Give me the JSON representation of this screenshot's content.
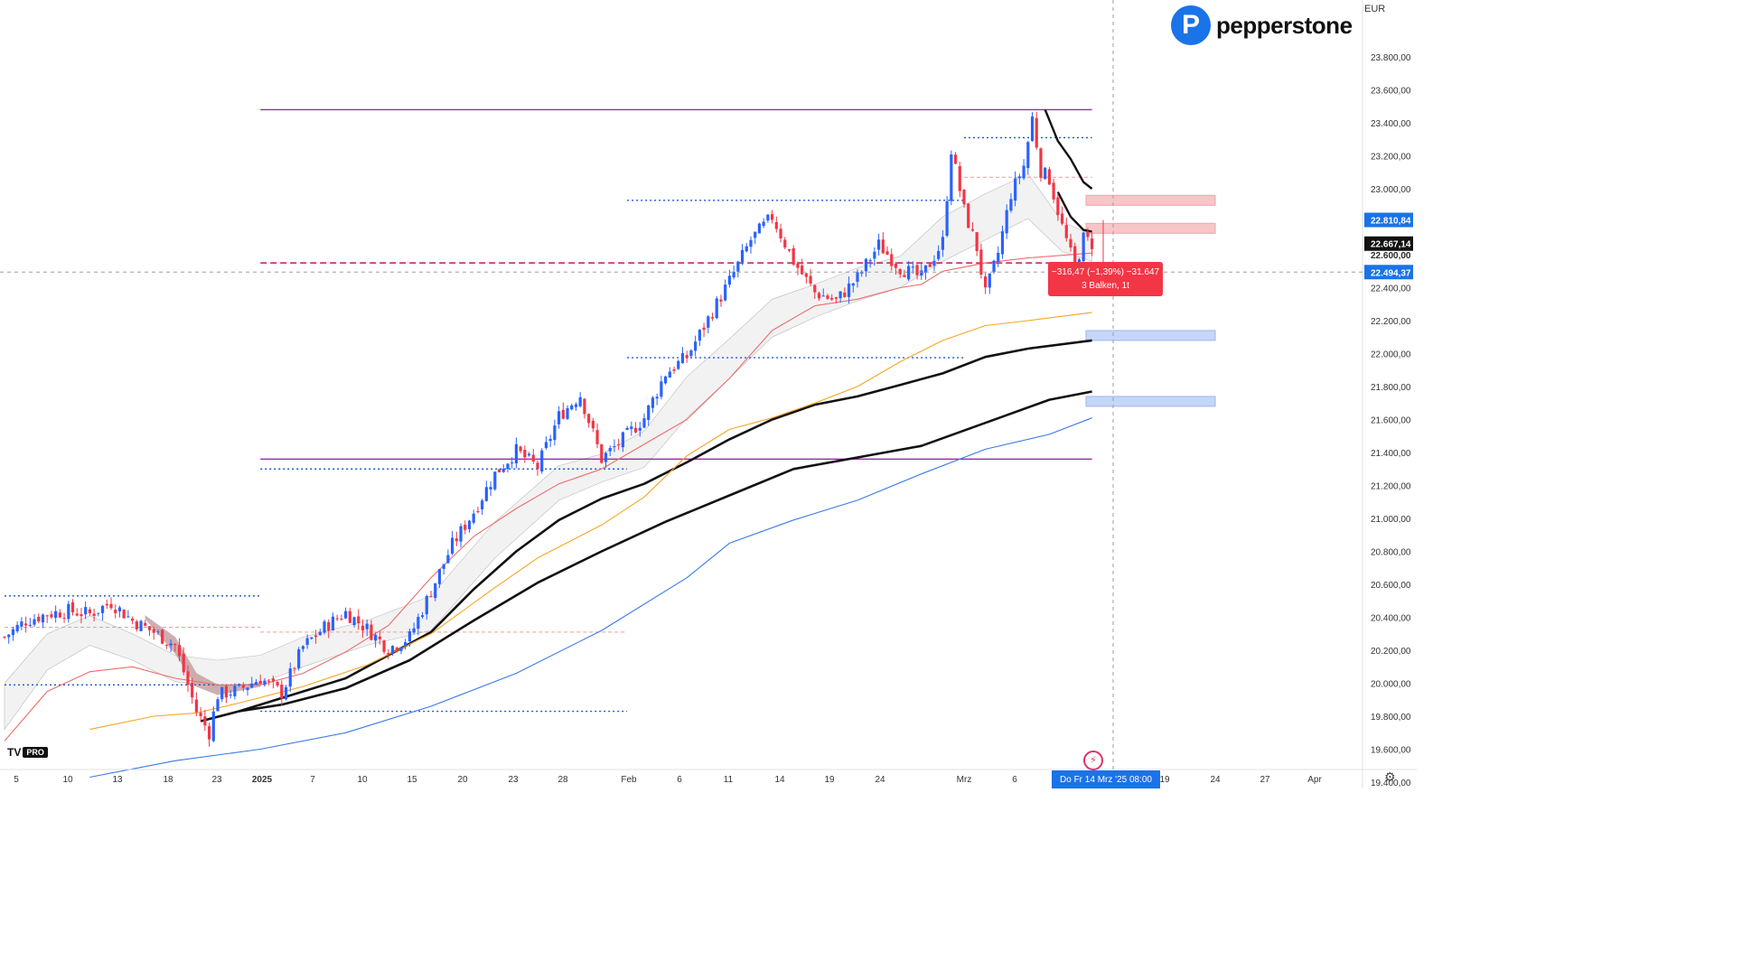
{
  "header": {
    "currency": "EUR",
    "brand": "pepperstone",
    "brand_mark": "P"
  },
  "tv_logo": {
    "text": "TV",
    "badge": "PRO"
  },
  "measure": {
    "line1": "−316,47 (−1,39%) −31.647",
    "line2": "3 Balken, 1t"
  },
  "date_badge": {
    "text": "Do  Fr 14 Mrz '25   08:00"
  },
  "chart_data": {
    "type": "candlestick",
    "title": "",
    "y_axis": {
      "range": [
        19350,
        23900
      ],
      "ticks": [
        "19.400,00",
        "19.600,00",
        "19.800,00",
        "20.000,00",
        "20.200,00",
        "20.400,00",
        "20.600,00",
        "20.800,00",
        "21.000,00",
        "21.200,00",
        "21.400,00",
        "21.600,00",
        "21.800,00",
        "22.000,00",
        "22.200,00",
        "22.400,00",
        "22.600,00",
        "22.800,00",
        "23.000,00",
        "23.200,00",
        "23.400,00",
        "23.600,00",
        "23.800,00"
      ],
      "tick_values": [
        19400,
        19600,
        19800,
        20000,
        20200,
        20400,
        20600,
        20800,
        21000,
        21200,
        21400,
        21600,
        21800,
        22000,
        22200,
        22400,
        22600,
        22800,
        23000,
        23200,
        23400,
        23600,
        23800
      ]
    },
    "x_axis": {
      "labels": [
        "5",
        "10",
        "13",
        "18",
        "23",
        "2025",
        "7",
        "10",
        "15",
        "20",
        "23",
        "28",
        "Feb",
        "6",
        "11",
        "14",
        "19",
        "24",
        "Mrz",
        "6",
        "19",
        "24",
        "27",
        "Apr"
      ],
      "bold": [
        "2025"
      ]
    },
    "price_labels": [
      {
        "text": "22.810,84",
        "value": 22810.84,
        "color": "#1a73e8"
      },
      {
        "text": "22.667,14",
        "value": 22667.14,
        "color": "#111111"
      },
      {
        "text": "22.600,00",
        "value": 22600,
        "color": "none"
      },
      {
        "text": "22.494,37",
        "value": 22494.37,
        "color": "#1a73e8"
      }
    ],
    "horizontal_levels": [
      {
        "value": 23480,
        "style": "solid",
        "color": "#9c27b0",
        "from_bar": 60,
        "to_bar": 255
      },
      {
        "value": 21360,
        "style": "solid",
        "color": "#9c27b0",
        "from_bar": 60,
        "to_bar": 255
      },
      {
        "value": 22550,
        "style": "dashed",
        "color": "#c2185b",
        "from_bar": 60,
        "to_bar": 255
      },
      {
        "value": 23310,
        "style": "dotted",
        "color": "#1a55d0",
        "from_bar": 225,
        "to_bar": 255
      },
      {
        "value": 22930,
        "style": "dotted",
        "color": "#1a55d0",
        "from_bar": 146,
        "to_bar": 225
      },
      {
        "value": 21975,
        "style": "dotted",
        "color": "#1a55d0",
        "from_bar": 146,
        "to_bar": 225
      },
      {
        "value": 21300,
        "style": "dotted",
        "color": "#1a55d0",
        "from_bar": 60,
        "to_bar": 146
      },
      {
        "value": 20530,
        "style": "dotted",
        "color": "#1a55d0",
        "from_bar": 0,
        "to_bar": 60
      },
      {
        "value": 19990,
        "style": "dotted",
        "color": "#1a55d0",
        "from_bar": 0,
        "to_bar": 60
      },
      {
        "value": 19830,
        "style": "dotted",
        "color": "#1a55d0",
        "from_bar": 60,
        "to_bar": 146
      }
    ],
    "zones": [
      {
        "low": 22900,
        "high": 22960,
        "color": "#f8c6c9"
      },
      {
        "low": 22730,
        "high": 22790,
        "color": "#f8c6c9"
      },
      {
        "low": 22080,
        "high": 22140,
        "color": "#c6d6f8"
      },
      {
        "low": 21680,
        "high": 21740,
        "color": "#c6d6f8"
      }
    ],
    "anchors": [
      [
        0,
        20280
      ],
      [
        5,
        20380
      ],
      [
        10,
        20420
      ],
      [
        15,
        20440
      ],
      [
        20,
        20420
      ],
      [
        25,
        20490
      ],
      [
        30,
        20380
      ],
      [
        35,
        20310
      ],
      [
        40,
        20230
      ],
      [
        45,
        19830
      ],
      [
        48,
        19700
      ],
      [
        50,
        19930
      ],
      [
        55,
        19960
      ],
      [
        60,
        20030
      ],
      [
        65,
        19940
      ],
      [
        70,
        20220
      ],
      [
        75,
        20340
      ],
      [
        80,
        20430
      ],
      [
        85,
        20330
      ],
      [
        90,
        20210
      ],
      [
        95,
        20280
      ],
      [
        100,
        20560
      ],
      [
        105,
        20840
      ],
      [
        110,
        21040
      ],
      [
        115,
        21270
      ],
      [
        120,
        21410
      ],
      [
        125,
        21310
      ],
      [
        130,
        21620
      ],
      [
        135,
        21750
      ],
      [
        140,
        21360
      ],
      [
        145,
        21480
      ],
      [
        150,
        21610
      ],
      [
        155,
        21880
      ],
      [
        160,
        21980
      ],
      [
        165,
        22210
      ],
      [
        170,
        22440
      ],
      [
        175,
        22690
      ],
      [
        180,
        22830
      ],
      [
        185,
        22560
      ],
      [
        190,
        22370
      ],
      [
        195,
        22320
      ],
      [
        200,
        22460
      ],
      [
        205,
        22660
      ],
      [
        210,
        22520
      ],
      [
        215,
        22460
      ],
      [
        220,
        22680
      ],
      [
        222,
        23240
      ],
      [
        225,
        22870
      ],
      [
        228,
        22640
      ],
      [
        230,
        22360
      ],
      [
        233,
        22610
      ],
      [
        236,
        22970
      ],
      [
        239,
        23140
      ],
      [
        241,
        23430
      ],
      [
        243,
        23110
      ],
      [
        245,
        23060
      ],
      [
        248,
        22770
      ],
      [
        251,
        22520
      ],
      [
        253,
        22700
      ],
      [
        255,
        22667
      ]
    ],
    "series": [
      {
        "name": "",
        "color": "#111111",
        "width": 2.6,
        "points": [
          [
            46,
            19770
          ],
          [
            55,
            19830
          ],
          [
            65,
            19910
          ],
          [
            80,
            20030
          ],
          [
            100,
            20310
          ],
          [
            110,
            20570
          ],
          [
            120,
            20800
          ],
          [
            130,
            20990
          ],
          [
            140,
            21120
          ],
          [
            150,
            21210
          ],
          [
            160,
            21340
          ],
          [
            170,
            21480
          ],
          [
            180,
            21600
          ],
          [
            190,
            21690
          ],
          [
            200,
            21740
          ],
          [
            210,
            21810
          ],
          [
            220,
            21880
          ],
          [
            230,
            21980
          ],
          [
            240,
            22030
          ],
          [
            255,
            22080
          ]
        ]
      },
      {
        "name": "",
        "color": "#111111",
        "width": 2.6,
        "points": [
          [
            55,
            19830
          ],
          [
            65,
            19870
          ],
          [
            80,
            19970
          ],
          [
            95,
            20140
          ],
          [
            110,
            20380
          ],
          [
            125,
            20610
          ],
          [
            140,
            20800
          ],
          [
            155,
            20980
          ],
          [
            170,
            21140
          ],
          [
            185,
            21300
          ],
          [
            200,
            21370
          ],
          [
            215,
            21440
          ],
          [
            230,
            21580
          ],
          [
            245,
            21720
          ],
          [
            255,
            21770
          ]
        ]
      },
      {
        "name": "",
        "color": "#ef6c6c",
        "width": 1.1,
        "points": [
          [
            0,
            19650
          ],
          [
            10,
            19950
          ],
          [
            20,
            20070
          ],
          [
            30,
            20100
          ],
          [
            40,
            20030
          ],
          [
            50,
            19990
          ],
          [
            60,
            19990
          ],
          [
            70,
            20060
          ],
          [
            80,
            20190
          ],
          [
            90,
            20350
          ],
          [
            100,
            20640
          ],
          [
            110,
            20890
          ],
          [
            120,
            21060
          ],
          [
            130,
            21210
          ],
          [
            140,
            21300
          ],
          [
            150,
            21450
          ],
          [
            160,
            21600
          ],
          [
            170,
            21850
          ],
          [
            180,
            22140
          ],
          [
            190,
            22290
          ],
          [
            200,
            22330
          ],
          [
            210,
            22400
          ],
          [
            215,
            22420
          ],
          [
            220,
            22500
          ],
          [
            230,
            22550
          ],
          [
            240,
            22580
          ],
          [
            255,
            22610
          ]
        ]
      },
      {
        "name": "",
        "color": "#f5a623",
        "width": 1.1,
        "points": [
          [
            20,
            19720
          ],
          [
            35,
            19800
          ],
          [
            45,
            19820
          ],
          [
            55,
            19880
          ],
          [
            70,
            19980
          ],
          [
            85,
            20110
          ],
          [
            100,
            20300
          ],
          [
            115,
            20580
          ],
          [
            125,
            20760
          ],
          [
            140,
            20960
          ],
          [
            150,
            21130
          ],
          [
            160,
            21380
          ],
          [
            170,
            21540
          ],
          [
            180,
            21610
          ],
          [
            190,
            21700
          ],
          [
            200,
            21800
          ],
          [
            210,
            21950
          ],
          [
            220,
            22080
          ],
          [
            230,
            22170
          ],
          [
            240,
            22200
          ],
          [
            255,
            22250
          ]
        ]
      },
      {
        "name": "",
        "color": "#3b78e7",
        "width": 1.1,
        "points": [
          [
            20,
            19430
          ],
          [
            40,
            19530
          ],
          [
            60,
            19600
          ],
          [
            80,
            19700
          ],
          [
            100,
            19860
          ],
          [
            120,
            20060
          ],
          [
            140,
            20320
          ],
          [
            160,
            20640
          ],
          [
            170,
            20850
          ],
          [
            185,
            20990
          ],
          [
            200,
            21110
          ],
          [
            215,
            21270
          ],
          [
            230,
            21420
          ],
          [
            245,
            21510
          ],
          [
            255,
            21610
          ]
        ]
      },
      {
        "name": "",
        "color": "#111111",
        "width": 2.4,
        "points": [
          [
            244,
            23480
          ],
          [
            247,
            23290
          ],
          [
            250,
            23180
          ],
          [
            253,
            23040
          ],
          [
            255,
            23000
          ]
        ]
      },
      {
        "name": "",
        "color": "#111111",
        "width": 2.4,
        "points": [
          [
            247,
            22980
          ],
          [
            250,
            22830
          ],
          [
            253,
            22750
          ],
          [
            255,
            22740
          ]
        ]
      }
    ],
    "bands": [
      {
        "color": "#f0f0f0",
        "upper": [
          [
            0,
            20000
          ],
          [
            10,
            20300
          ],
          [
            20,
            20410
          ],
          [
            30,
            20300
          ],
          [
            40,
            20170
          ],
          [
            50,
            20140
          ],
          [
            60,
            20170
          ],
          [
            70,
            20280
          ],
          [
            85,
            20380
          ],
          [
            100,
            20530
          ],
          [
            115,
            20980
          ],
          [
            130,
            21320
          ],
          [
            140,
            21390
          ],
          [
            150,
            21530
          ],
          [
            160,
            21860
          ],
          [
            170,
            22090
          ],
          [
            180,
            22330
          ],
          [
            190,
            22420
          ],
          [
            200,
            22520
          ],
          [
            210,
            22590
          ],
          [
            220,
            22830
          ],
          [
            230,
            22970
          ],
          [
            240,
            23090
          ],
          [
            248,
            22800
          ],
          [
            255,
            22720
          ]
        ],
        "lower": [
          [
            0,
            19720
          ],
          [
            10,
            20080
          ],
          [
            20,
            20230
          ],
          [
            30,
            20140
          ],
          [
            40,
            20010
          ],
          [
            50,
            19980
          ],
          [
            60,
            20000
          ],
          [
            70,
            20100
          ],
          [
            85,
            20230
          ],
          [
            100,
            20320
          ],
          [
            115,
            20760
          ],
          [
            130,
            21110
          ],
          [
            140,
            21220
          ],
          [
            150,
            21310
          ],
          [
            160,
            21610
          ],
          [
            170,
            21850
          ],
          [
            180,
            22100
          ],
          [
            190,
            22220
          ],
          [
            200,
            22320
          ],
          [
            210,
            22400
          ],
          [
            220,
            22560
          ],
          [
            230,
            22690
          ],
          [
            240,
            22820
          ],
          [
            248,
            22620
          ],
          [
            255,
            22560
          ]
        ]
      },
      {
        "color": "#c7a0a3",
        "upper": [
          [
            33,
            20410
          ],
          [
            40,
            20280
          ],
          [
            45,
            20060
          ],
          [
            50,
            19990
          ],
          [
            56,
            19990
          ],
          [
            60,
            20000
          ]
        ],
        "lower": [
          [
            33,
            20390
          ],
          [
            40,
            20180
          ],
          [
            45,
            19980
          ],
          [
            50,
            19930
          ],
          [
            56,
            19960
          ],
          [
            60,
            19980
          ]
        ]
      }
    ],
    "up_color": "#2962ff",
    "down_color": "#f23645",
    "legend": "none",
    "grid": false
  }
}
